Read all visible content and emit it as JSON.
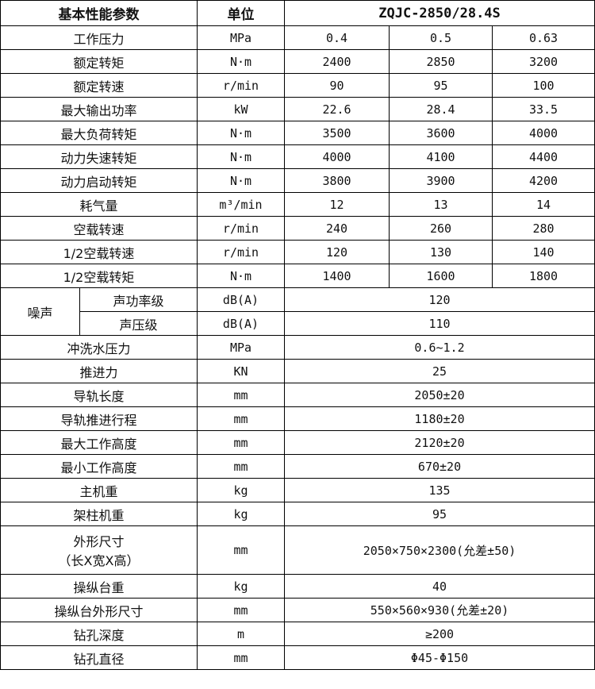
{
  "header": {
    "param": "基本性能参数",
    "unit": "单位",
    "model": "ZQJC-2850/28.4S"
  },
  "rows3": [
    {
      "name": "工作压力",
      "unit": "MPa",
      "v": [
        "0.4",
        "0.5",
        "0.63"
      ]
    },
    {
      "name": "额定转矩",
      "unit": "N·m",
      "v": [
        "2400",
        "2850",
        "3200"
      ]
    },
    {
      "name": "额定转速",
      "unit": "r/min",
      "v": [
        "90",
        "95",
        "100"
      ]
    },
    {
      "name": "最大输出功率",
      "unit": "kW",
      "v": [
        "22.6",
        "28.4",
        "33.5"
      ]
    },
    {
      "name": "最大负荷转矩",
      "unit": "N·m",
      "v": [
        "3500",
        "3600",
        "4000"
      ]
    },
    {
      "name": "动力失速转矩",
      "unit": "N·m",
      "v": [
        "4000",
        "4100",
        "4400"
      ]
    },
    {
      "name": "动力启动转矩",
      "unit": "N·m",
      "v": [
        "3800",
        "3900",
        "4200"
      ]
    },
    {
      "name": "耗气量",
      "unit": "m³/min",
      "v": [
        "12",
        "13",
        "14"
      ]
    },
    {
      "name": "空载转速",
      "unit": "r/min",
      "v": [
        "240",
        "260",
        "280"
      ]
    },
    {
      "name": "1/2空载转速",
      "unit": "r/min",
      "v": [
        "120",
        "130",
        "140"
      ]
    },
    {
      "name": "1/2空载转矩",
      "unit": "N·m",
      "v": [
        "1400",
        "1600",
        "1800"
      ]
    }
  ],
  "noise": {
    "label": "噪声",
    "rows": [
      {
        "name": "声功率级",
        "unit": "dB(A)",
        "value": "120"
      },
      {
        "name": "声压级",
        "unit": "dB(A)",
        "value": "110"
      }
    ]
  },
  "rows1": [
    {
      "name": "冲洗水压力",
      "unit": "MPa",
      "value": "0.6~1.2"
    },
    {
      "name": "推进力",
      "unit": "KN",
      "value": "25"
    },
    {
      "name": "导轨长度",
      "unit": "mm",
      "value": "2050±20"
    },
    {
      "name": "导轨推进行程",
      "unit": "mm",
      "value": "1180±20"
    },
    {
      "name": "最大工作高度",
      "unit": "mm",
      "value": "2120±20"
    },
    {
      "name": "最小工作高度",
      "unit": "mm",
      "value": "670±20"
    },
    {
      "name": "主机重",
      "unit": "kg",
      "value": "135"
    },
    {
      "name": "架柱机重",
      "unit": "kg",
      "value": "95"
    }
  ],
  "dims": {
    "name1": "外形尺寸",
    "name2": "（长X宽X高）",
    "unit": "mm",
    "value": "2050×750×2300(允差±50)"
  },
  "rows2": [
    {
      "name": "操纵台重",
      "unit": "kg",
      "value": "40"
    },
    {
      "name": "操纵台外形尺寸",
      "unit": "mm",
      "value": "550×560×930(允差±20)"
    },
    {
      "name": "钻孔深度",
      "unit": "m",
      "value": "≥200"
    },
    {
      "name": "钻孔直径",
      "unit": "mm",
      "value": "Φ45-Φ150"
    }
  ]
}
